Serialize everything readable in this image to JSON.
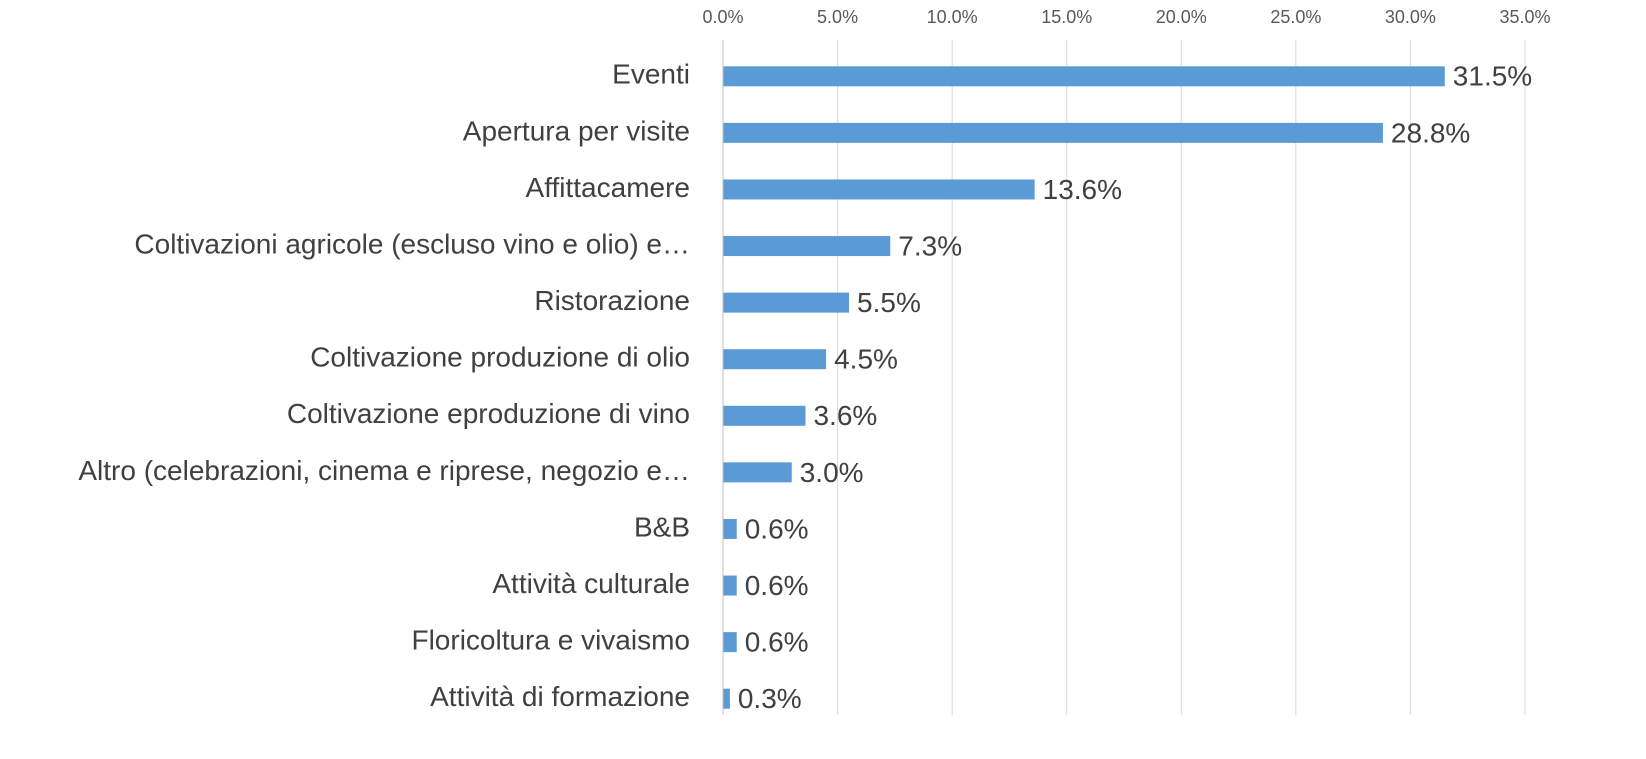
{
  "chart_data": {
    "type": "bar",
    "orientation": "horizontal",
    "categories": [
      "Eventi",
      "Apertura per visite",
      "Affittacamere",
      "Coltivazioni agricole (escluso vino e olio) e…",
      "Ristorazione",
      "Coltivazione produzione di olio",
      "Coltivazione eproduzione di vino",
      "Altro (celebrazioni, cinema e riprese, negozio e…",
      "B&B",
      "Attività culturale",
      "Floricoltura e vivaismo",
      "Attività di formazione"
    ],
    "values": [
      31.5,
      28.8,
      13.6,
      7.3,
      5.5,
      4.5,
      3.6,
      3.0,
      0.6,
      0.6,
      0.6,
      0.3
    ],
    "value_labels": [
      "31.5%",
      "28.8%",
      "13.6%",
      "7.3%",
      "5.5%",
      "4.5%",
      "3.6%",
      "3.0%",
      "0.6%",
      "0.6%",
      "0.6%",
      "0.3%"
    ],
    "color": "#5b9bd5",
    "xlim": [
      0,
      35
    ],
    "xticks": [
      {
        "value": 0,
        "label": "0.0%"
      },
      {
        "value": 5,
        "label": "5.0%"
      },
      {
        "value": 10,
        "label": "10.0%"
      },
      {
        "value": 15,
        "label": "15.0%"
      },
      {
        "value": 20,
        "label": "20.0%"
      },
      {
        "value": 25,
        "label": "25.0%"
      },
      {
        "value": 30,
        "label": "30.0%"
      },
      {
        "value": 35,
        "label": "35.0%"
      }
    ],
    "grid": true
  }
}
